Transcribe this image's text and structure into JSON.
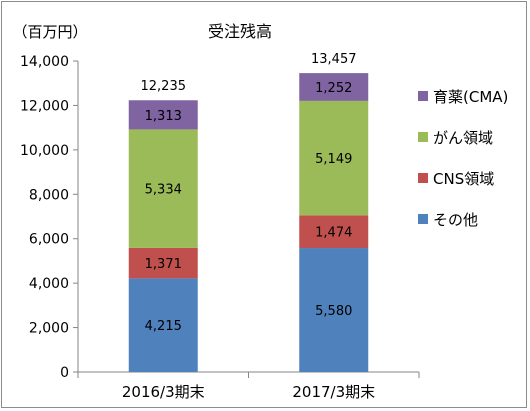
{
  "chart_data": {
    "type": "bar",
    "stacked": true,
    "title": "受注残高",
    "ylabel": "（百万円）",
    "ylim": [
      0,
      14000
    ],
    "yticks": [
      0,
      2000,
      4000,
      6000,
      8000,
      10000,
      12000,
      14000
    ],
    "ytick_labels": [
      "0",
      "2,000",
      "4,000",
      "6,000",
      "8,000",
      "10,000",
      "12,000",
      "14,000"
    ],
    "categories": [
      "2016/3期末",
      "2017/3期末"
    ],
    "series": [
      {
        "name": "その他",
        "values": [
          4215,
          5580
        ],
        "labels": [
          "4,215",
          "5,580"
        ],
        "color": "#4f81bd"
      },
      {
        "name": "CNS領域",
        "values": [
          1371,
          1474
        ],
        "labels": [
          "1,371",
          "1,474"
        ],
        "color": "#c0504d"
      },
      {
        "name": "がん領域",
        "values": [
          5334,
          5149
        ],
        "labels": [
          "5,334",
          "5,149"
        ],
        "color": "#9bbb59"
      },
      {
        "name": "育薬(CMA)",
        "values": [
          1313,
          1252
        ],
        "labels": [
          "1,313",
          "1,252"
        ],
        "color": "#8064a2"
      }
    ],
    "totals": [
      12235,
      13457
    ],
    "total_labels": [
      "12,235",
      "13,457"
    ],
    "legend_position": "right",
    "grid": false
  }
}
